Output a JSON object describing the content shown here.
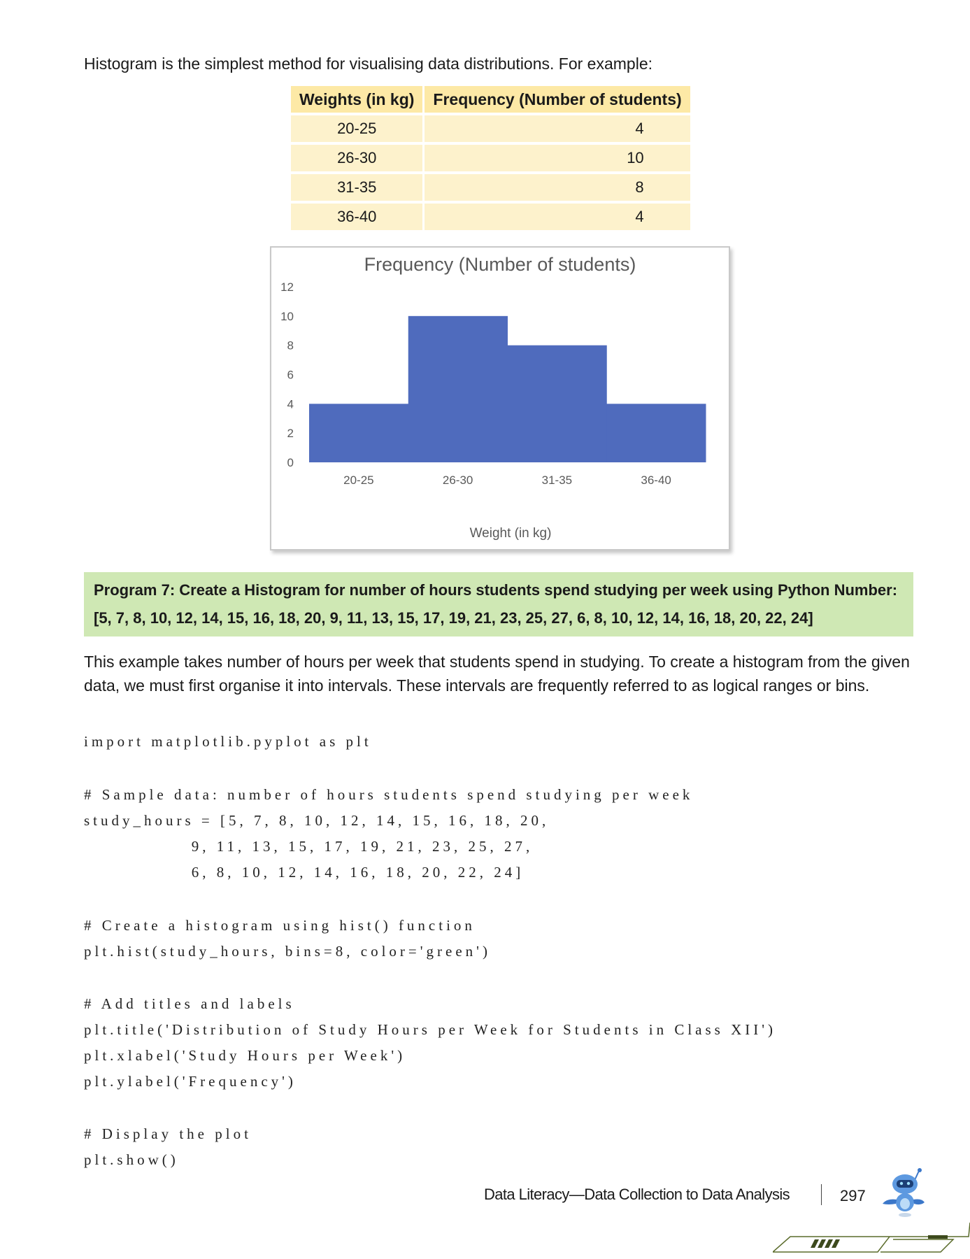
{
  "intro": "Histogram is the simplest method for visualising data distributions. For example:",
  "table": {
    "headers": [
      "Weights (in kg)",
      "Frequency (Number of students)"
    ],
    "rows": [
      [
        "20-25",
        "4"
      ],
      [
        "26-30",
        "10"
      ],
      [
        "31-35",
        "8"
      ],
      [
        "36-40",
        "4"
      ]
    ]
  },
  "chart_data": {
    "type": "bar",
    "title": "Frequency (Number of students)",
    "xlabel": "Weight (in kg)",
    "ylabel": "",
    "categories": [
      "20-25",
      "26-30",
      "31-35",
      "36-40"
    ],
    "values": [
      4,
      10,
      8,
      4
    ],
    "ylim": [
      0,
      12
    ],
    "yticks": [
      "0",
      "2",
      "4",
      "6",
      "8",
      "10",
      "12"
    ],
    "bar_color": "#4f6bbd",
    "grid": false,
    "legend": "none"
  },
  "program": {
    "line1": "Program 7: Create a Histogram for number of hours students spend studying per week using Python Number:",
    "line2": "[5, 7, 8, 10, 12, 14, 15, 16, 18, 20, 9, 11, 13, 15, 17, 19, 21, 23, 25, 27, 6, 8, 10, 12, 14, 16, 18, 20, 22, 24]"
  },
  "paragraph": "This example takes number of hours per week that students spend in studying. To create a histogram from the given data, we must first organise it into intervals. These intervals are frequently referred to as logical ranges or bins.",
  "code": [
    "import matplotlib.pyplot as plt",
    "# Sample data: number of hours students spend studying per week",
    "study_hours = [5, 7, 8, 10, 12, 14, 15, 16, 18, 20,",
    "               9, 11, 13, 15, 17, 19, 21, 23, 25, 27,",
    "               6, 8, 10, 12, 14, 16, 18, 20, 22, 24]",
    "# Create a histogram using hist() function",
    "plt.hist(study_hours, bins=8, color='green')",
    "# Add titles and labels",
    "plt.title('Distribution of Study Hours per Week for Students in Class XII')",
    "plt.xlabel('Study Hours per Week')",
    "plt.ylabel('Frequency')",
    "# Display the plot",
    "plt.show()"
  ],
  "footer": {
    "title": "Data Literacy—Data Collection to Data Analysis",
    "page": "297"
  },
  "colors": {
    "table_header": "#fde9a6",
    "table_cell": "#fdf2cc",
    "program_bg": "#cfe8b4",
    "bar": "#4f6bbd"
  },
  "icons": [
    "robot-mascot-icon",
    "page-corner-decoration-icon"
  ]
}
